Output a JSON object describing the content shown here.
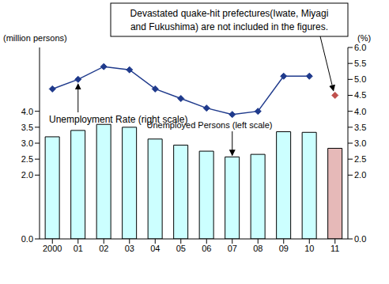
{
  "chart_data": {
    "type": "bar",
    "ylabel": "(million persons)",
    "y2label": "(%)",
    "categories": [
      "2000",
      "01",
      "02",
      "03",
      "04",
      "05",
      "06",
      "07",
      "08",
      "09",
      "10",
      "11"
    ],
    "series": [
      {
        "name": "Unemployed Persons (left scale)",
        "type": "bar",
        "colors": [
          "#ccffff",
          "#ccffff",
          "#ccffff",
          "#ccffff",
          "#ccffff",
          "#ccffff",
          "#ccffff",
          "#ccffff",
          "#ccffff",
          "#ccffff",
          "#ccffff",
          "#e6b9b8"
        ],
        "values": [
          3.2,
          3.4,
          3.59,
          3.5,
          3.13,
          2.94,
          2.75,
          2.57,
          2.65,
          3.36,
          3.34,
          2.84
        ]
      },
      {
        "name": "Unemployment Rate (right scale)",
        "type": "line",
        "axis": "y2",
        "color": "#1f3a8c",
        "marker": "diamond",
        "line_style": "solid",
        "values": [
          4.7,
          5.0,
          5.4,
          5.3,
          4.7,
          4.4,
          4.1,
          3.9,
          4.0,
          5.1,
          5.1,
          null
        ]
      },
      {
        "type": "line",
        "axis": "y2",
        "color": "#c0504d",
        "marker": "diamond",
        "line_style": "none",
        "values": [
          null,
          null,
          null,
          null,
          null,
          null,
          null,
          null,
          null,
          null,
          null,
          4.5
        ]
      }
    ],
    "ylim": [
      0,
      6
    ],
    "yticks": [
      {
        "value": 0,
        "label": "0.0"
      },
      {
        "value": 2,
        "label": "2.0"
      },
      2.5,
      {
        "value": 3,
        "label": "3.0"
      },
      3.5,
      {
        "value": 4,
        "label": "4.0"
      }
    ],
    "y2lim": [
      0,
      6
    ],
    "y2ticks": [
      {
        "value": 0,
        "label": "0.0"
      },
      {
        "value": 2,
        "label": "2.0"
      },
      2.5,
      {
        "value": 3,
        "label": "3.0"
      },
      3.5,
      {
        "value": 4,
        "label": "4.0"
      },
      4.5,
      {
        "value": 5,
        "label": "5.0"
      },
      5.5,
      {
        "value": 6,
        "label": "6.0"
      }
    ],
    "grid": false,
    "annotations": [
      {
        "lines": [
          "Unemployment Rate (right scale)"
        ]
      },
      {
        "lines": [
          "Unemployed Persons (left scale)"
        ]
      },
      {
        "lines": [
          "Devastated quake-hit prefectures(Iwate, Miyagi",
          "and Fukushima) are not included in the figures."
        ]
      }
    ]
  }
}
